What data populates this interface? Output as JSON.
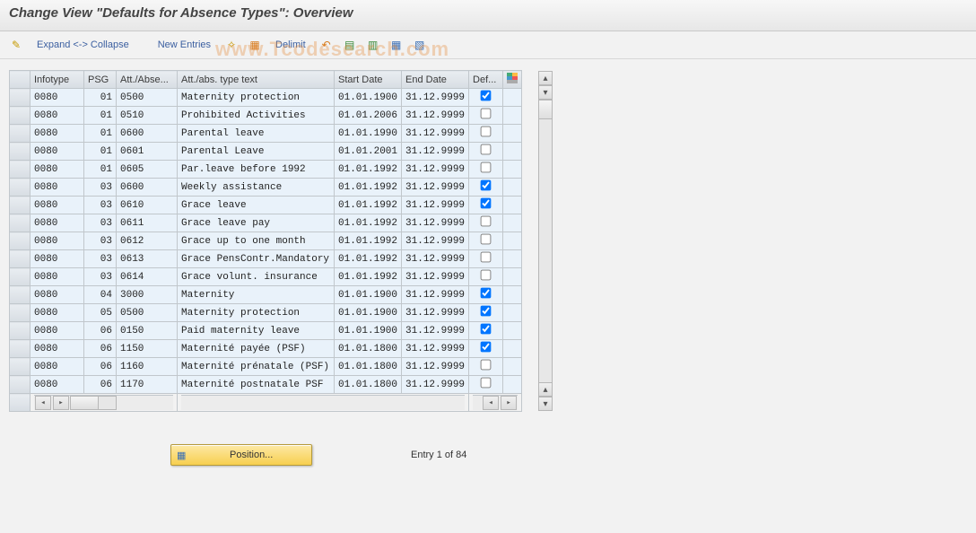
{
  "title": "Change View \"Defaults for Absence Types\": Overview",
  "watermark": "www.Tcodesearch.com",
  "toolbar": {
    "expand": "Expand <-> Collapse",
    "newEntries": "New Entries",
    "delimit": "Delimit"
  },
  "columns": {
    "rowhandle": "",
    "infotype": "Infotype",
    "psg": "PSG",
    "att": "Att./Abse...",
    "text": "Att./abs. type text",
    "start": "Start Date",
    "end": "End Date",
    "def": "Def..."
  },
  "colWidths": {
    "rowhandle": 14,
    "infotype": 60,
    "psg": 36,
    "att": 68,
    "text": 175,
    "start": 72,
    "end": 74,
    "def": 38,
    "cfg": 18
  },
  "rows": [
    {
      "infotype": "0080",
      "psg": "01",
      "att": "0500",
      "text": "Maternity protection",
      "start": "01.01.1900",
      "end": "31.12.9999",
      "def": true
    },
    {
      "infotype": "0080",
      "psg": "01",
      "att": "0510",
      "text": "Prohibited Activities",
      "start": "01.01.2006",
      "end": "31.12.9999",
      "def": false
    },
    {
      "infotype": "0080",
      "psg": "01",
      "att": "0600",
      "text": "Parental leave",
      "start": "01.01.1990",
      "end": "31.12.9999",
      "def": false
    },
    {
      "infotype": "0080",
      "psg": "01",
      "att": "0601",
      "text": "Parental Leave",
      "start": "01.01.2001",
      "end": "31.12.9999",
      "def": false
    },
    {
      "infotype": "0080",
      "psg": "01",
      "att": "0605",
      "text": "Par.leave before 1992",
      "start": "01.01.1992",
      "end": "31.12.9999",
      "def": false
    },
    {
      "infotype": "0080",
      "psg": "03",
      "att": "0600",
      "text": "Weekly assistance",
      "start": "01.01.1992",
      "end": "31.12.9999",
      "def": true
    },
    {
      "infotype": "0080",
      "psg": "03",
      "att": "0610",
      "text": "Grace leave",
      "start": "01.01.1992",
      "end": "31.12.9999",
      "def": true
    },
    {
      "infotype": "0080",
      "psg": "03",
      "att": "0611",
      "text": "Grace leave pay",
      "start": "01.01.1992",
      "end": "31.12.9999",
      "def": false
    },
    {
      "infotype": "0080",
      "psg": "03",
      "att": "0612",
      "text": "Grace up to one month",
      "start": "01.01.1992",
      "end": "31.12.9999",
      "def": false
    },
    {
      "infotype": "0080",
      "psg": "03",
      "att": "0613",
      "text": "Grace PensContr.Mandatory",
      "start": "01.01.1992",
      "end": "31.12.9999",
      "def": false
    },
    {
      "infotype": "0080",
      "psg": "03",
      "att": "0614",
      "text": "Grace volunt. insurance",
      "start": "01.01.1992",
      "end": "31.12.9999",
      "def": false
    },
    {
      "infotype": "0080",
      "psg": "04",
      "att": "3000",
      "text": "Maternity",
      "start": "01.01.1900",
      "end": "31.12.9999",
      "def": true
    },
    {
      "infotype": "0080",
      "psg": "05",
      "att": "0500",
      "text": "Maternity protection",
      "start": "01.01.1900",
      "end": "31.12.9999",
      "def": true
    },
    {
      "infotype": "0080",
      "psg": "06",
      "att": "0150",
      "text": "Paid maternity leave",
      "start": "01.01.1900",
      "end": "31.12.9999",
      "def": true
    },
    {
      "infotype": "0080",
      "psg": "06",
      "att": "1150",
      "text": "Maternité payée (PSF)",
      "start": "01.01.1800",
      "end": "31.12.9999",
      "def": true
    },
    {
      "infotype": "0080",
      "psg": "06",
      "att": "1160",
      "text": "Maternité prénatale (PSF)",
      "start": "01.01.1800",
      "end": "31.12.9999",
      "def": false
    },
    {
      "infotype": "0080",
      "psg": "06",
      "att": "1170",
      "text": "Maternité postnatale PSF",
      "start": "01.01.1800",
      "end": "31.12.9999",
      "def": false
    }
  ],
  "footer": {
    "position": "Position...",
    "entry": "Entry 1 of 84"
  }
}
